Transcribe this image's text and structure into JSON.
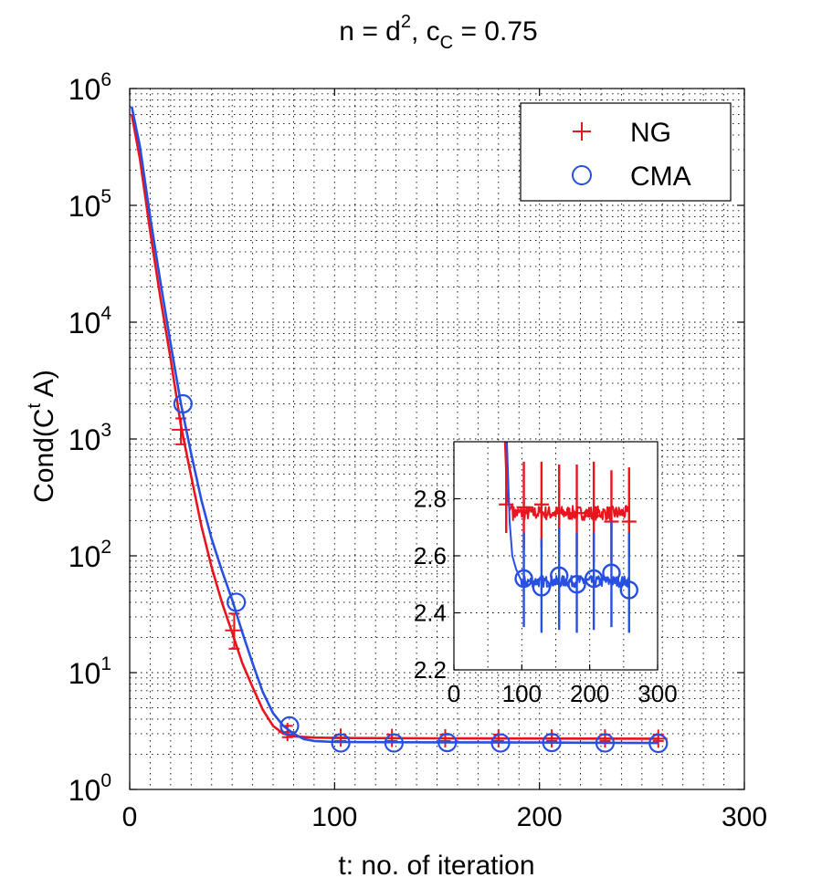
{
  "chart_data": [
    {
      "type": "line",
      "title_parts": {
        "t1": "n = d",
        "t2": "2",
        "t3": ", c",
        "t4": "C",
        "t5": " = 0.75"
      },
      "xlabel": "t: no. of iteration",
      "ylabel_parts": {
        "y1": "Cond(C",
        "y2": "t",
        "y3": " A)"
      },
      "xlim": [
        0,
        300
      ],
      "ylim": [
        1,
        1000000
      ],
      "yscale": "log",
      "grid": true,
      "legend_position": "top-right",
      "x_ticks": [
        "0",
        "100",
        "200",
        "300"
      ],
      "y_tick_labels": [
        {
          "base": "10",
          "exp": "0"
        },
        {
          "base": "10",
          "exp": "1"
        },
        {
          "base": "10",
          "exp": "2"
        },
        {
          "base": "10",
          "exp": "3"
        },
        {
          "base": "10",
          "exp": "4"
        },
        {
          "base": "10",
          "exp": "5"
        },
        {
          "base": "10",
          "exp": "6"
        }
      ],
      "series": [
        {
          "name": "NG",
          "color": "#e8141e",
          "marker": "plus",
          "line": [
            [
              1,
              600000
            ],
            [
              5,
              250000
            ],
            [
              10,
              60000
            ],
            [
              15,
              16000
            ],
            [
              20,
              4800
            ],
            [
              25,
              1300
            ],
            [
              30,
              480
            ],
            [
              35,
              180
            ],
            [
              40,
              80
            ],
            [
              45,
              40
            ],
            [
              50,
              22
            ],
            [
              55,
              12
            ],
            [
              60,
              7.5
            ],
            [
              65,
              4.8
            ],
            [
              70,
              3.5
            ],
            [
              75,
              3.0
            ],
            [
              80,
              2.85
            ],
            [
              90,
              2.78
            ],
            [
              100,
              2.76
            ],
            [
              150,
              2.74
            ],
            [
              200,
              2.73
            ],
            [
              258,
              2.72
            ]
          ],
          "markers": [
            {
              "x": 25,
              "y": 1200,
              "low": 900,
              "high": 1500
            },
            {
              "x": 51,
              "y": 23,
              "low": 16,
              "high": 32
            },
            {
              "x": 77,
              "y": 3.1,
              "low": 2.8,
              "high": 3.5
            },
            {
              "x": 103,
              "y": 2.78,
              "low": 2.6,
              "high": 2.95
            },
            {
              "x": 128,
              "y": 2.76,
              "low": 2.6,
              "high": 2.95
            },
            {
              "x": 154,
              "y": 2.74,
              "low": 2.6,
              "high": 2.95
            },
            {
              "x": 180,
              "y": 2.74,
              "low": 2.6,
              "high": 2.95
            },
            {
              "x": 206,
              "y": 2.73,
              "low": 2.6,
              "high": 2.95
            },
            {
              "x": 232,
              "y": 2.73,
              "low": 2.6,
              "high": 2.95
            },
            {
              "x": 258,
              "y": 2.72,
              "low": 2.6,
              "high": 2.95
            }
          ]
        },
        {
          "name": "CMA",
          "color": "#2850e0",
          "marker": "circle",
          "line": [
            [
              1,
              700000
            ],
            [
              5,
              320000
            ],
            [
              10,
              80000
            ],
            [
              15,
              22000
            ],
            [
              20,
              6500
            ],
            [
              25,
              2000
            ],
            [
              30,
              750
            ],
            [
              35,
              300
            ],
            [
              40,
              140
            ],
            [
              45,
              75
            ],
            [
              50,
              42
            ],
            [
              55,
              22
            ],
            [
              60,
              12
            ],
            [
              65,
              6.8
            ],
            [
              70,
              4.5
            ],
            [
              75,
              3.5
            ],
            [
              80,
              3.0
            ],
            [
              85,
              2.7
            ],
            [
              90,
              2.6
            ],
            [
              100,
              2.55
            ],
            [
              150,
              2.53
            ],
            [
              200,
              2.52
            ],
            [
              258,
              2.5
            ]
          ],
          "markers": [
            {
              "x": 26,
              "y": 2000
            },
            {
              "x": 52,
              "y": 40
            },
            {
              "x": 78,
              "y": 3.5
            },
            {
              "x": 103,
              "y": 2.5
            },
            {
              "x": 129,
              "y": 2.5
            },
            {
              "x": 155,
              "y": 2.52
            },
            {
              "x": 181,
              "y": 2.5
            },
            {
              "x": 206,
              "y": 2.52
            },
            {
              "x": 232,
              "y": 2.5
            },
            {
              "x": 258,
              "y": 2.48
            }
          ]
        }
      ]
    },
    {
      "type": "line",
      "role": "inset",
      "xlim": [
        0,
        300
      ],
      "ylim": [
        2.2,
        3.0
      ],
      "x_ticks": [
        "0",
        "100",
        "200",
        "300"
      ],
      "y_ticks": [
        "2.2",
        "2.4",
        "2.6",
        "2.8"
      ],
      "series": [
        {
          "name": "NG",
          "color": "#e8141e",
          "line_start": [
            [
              75,
              3.0
            ],
            [
              78,
              2.82
            ],
            [
              82,
              2.76
            ],
            [
              86,
              2.78
            ]
          ],
          "level": 2.75,
          "noise": 0.025,
          "x_end": 258,
          "errorbars": [
            {
              "x": 77,
              "y": 2.78,
              "low": 2.68,
              "high": 3.0
            },
            {
              "x": 103,
              "y": 2.77,
              "low": 2.62,
              "high": 2.93
            },
            {
              "x": 129,
              "y": 2.78,
              "low": 2.63,
              "high": 2.93
            },
            {
              "x": 155,
              "y": 2.75,
              "low": 2.6,
              "high": 2.92
            },
            {
              "x": 181,
              "y": 2.75,
              "low": 2.6,
              "high": 2.92
            },
            {
              "x": 206,
              "y": 2.74,
              "low": 2.58,
              "high": 2.93
            },
            {
              "x": 232,
              "y": 2.72,
              "low": 2.58,
              "high": 2.9
            },
            {
              "x": 258,
              "y": 2.72,
              "low": 2.6,
              "high": 2.91
            }
          ]
        },
        {
          "name": "CMA",
          "color": "#2850e0",
          "line_start": [
            [
              78,
              3.0
            ],
            [
              82,
              2.72
            ],
            [
              86,
              2.6
            ],
            [
              92,
              2.55
            ],
            [
              98,
              2.52
            ]
          ],
          "level": 2.51,
          "noise": 0.02,
          "x_end": 258,
          "errorbars": [
            {
              "x": 103,
              "y": 2.52,
              "low": 2.35,
              "high": 2.68
            },
            {
              "x": 129,
              "y": 2.49,
              "low": 2.33,
              "high": 2.66
            },
            {
              "x": 155,
              "y": 2.53,
              "low": 2.34,
              "high": 2.7
            },
            {
              "x": 181,
              "y": 2.5,
              "low": 2.33,
              "high": 2.68
            },
            {
              "x": 206,
              "y": 2.52,
              "low": 2.34,
              "high": 2.68
            },
            {
              "x": 232,
              "y": 2.54,
              "low": 2.35,
              "high": 2.72
            },
            {
              "x": 258,
              "y": 2.48,
              "low": 2.33,
              "high": 2.68
            }
          ]
        }
      ]
    }
  ]
}
